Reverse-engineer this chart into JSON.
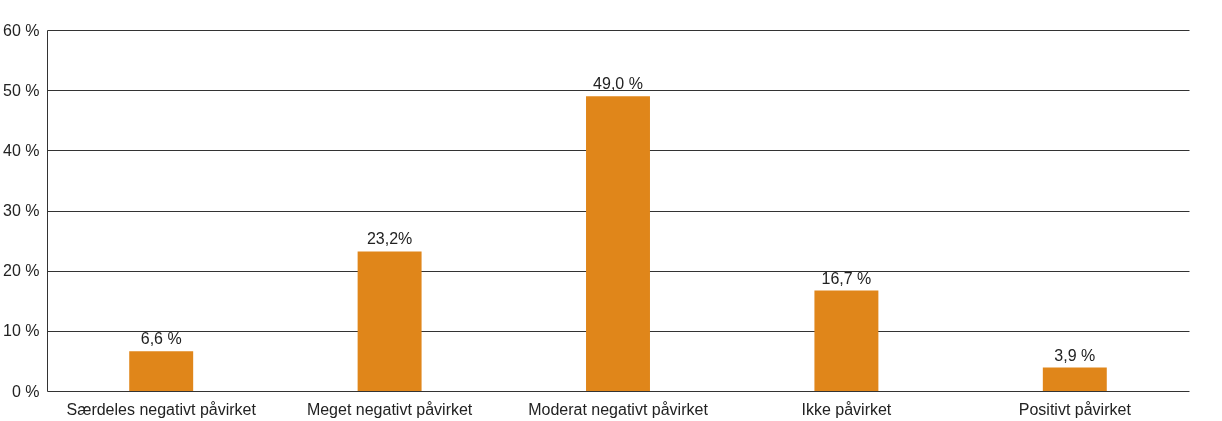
{
  "chart_data": {
    "type": "bar",
    "categories": [
      "Særdeles negativt påvirket",
      "Meget negativt påvirket",
      "Moderat negativt påvirket",
      "Ikke påvirket",
      "Positivt påvirket"
    ],
    "values": [
      6.6,
      23.2,
      49.0,
      16.7,
      3.9
    ],
    "value_labels": [
      "6,6 %",
      "23,2%",
      "49,0 %",
      "16,7 %",
      "3,9 %"
    ],
    "color": "#e0861a",
    "ylim": [
      0,
      60
    ],
    "yticks": [
      {
        "value": 0,
        "label": "0 %"
      },
      {
        "value": 10,
        "label": "10 %"
      },
      {
        "value": 20,
        "label": "20 %"
      },
      {
        "value": 30,
        "label": "30 %"
      },
      {
        "value": 40,
        "label": "40 %"
      },
      {
        "value": 50,
        "label": "50 %"
      },
      {
        "value": 60,
        "label": "60 %"
      }
    ],
    "grid": "y"
  }
}
